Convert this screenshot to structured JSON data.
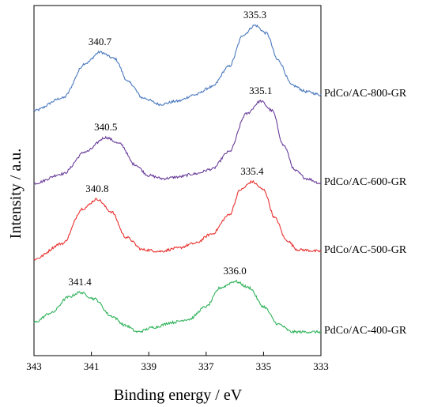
{
  "chart_data": {
    "type": "line",
    "xlabel": "Binding energy / eV",
    "ylabel": "Intensity / a.u.",
    "x_reversed": true,
    "xlim": [
      343,
      333
    ],
    "x_ticks": [
      "343",
      "341",
      "339",
      "337",
      "335",
      "333"
    ],
    "y_ticks_shown": false,
    "legend": "series labels at right end of each curve",
    "series": [
      {
        "name": "PdCo/AC-800-GR",
        "color": "#4a78be",
        "offset": 0.75,
        "peak_left": {
          "x": 340.7,
          "label": "340.7",
          "height": 0.185
        },
        "peak_right": {
          "x": 335.3,
          "label": "335.3",
          "height": 0.27
        },
        "points": [
          [
            343,
            0.0
          ],
          [
            342,
            0.04
          ],
          [
            341.2,
            0.15
          ],
          [
            340.7,
            0.185
          ],
          [
            340.2,
            0.165
          ],
          [
            339.7,
            0.09
          ],
          [
            339.2,
            0.04
          ],
          [
            338.6,
            0.02
          ],
          [
            338,
            0.03
          ],
          [
            337.4,
            0.05
          ],
          [
            336.8,
            0.075
          ],
          [
            336.2,
            0.14
          ],
          [
            335.7,
            0.24
          ],
          [
            335.3,
            0.27
          ],
          [
            334.9,
            0.245
          ],
          [
            334.5,
            0.16
          ],
          [
            334.0,
            0.08
          ],
          [
            333.5,
            0.06
          ],
          [
            333,
            0.05
          ]
        ]
      },
      {
        "name": "PdCo/AC-600-GR",
        "color": "#6a3d9a",
        "offset": 0.52,
        "peak_left": {
          "x": 340.5,
          "label": "340.5",
          "height": 0.145
        },
        "peak_right": {
          "x": 335.1,
          "label": "335.1",
          "height": 0.26
        },
        "points": [
          [
            343,
            0.0
          ],
          [
            342,
            0.03
          ],
          [
            341.2,
            0.1
          ],
          [
            340.5,
            0.145
          ],
          [
            340.0,
            0.125
          ],
          [
            339.5,
            0.06
          ],
          [
            339.0,
            0.025
          ],
          [
            338.5,
            0.015
          ],
          [
            338,
            0.02
          ],
          [
            337.4,
            0.03
          ],
          [
            336.8,
            0.045
          ],
          [
            336.2,
            0.1
          ],
          [
            335.6,
            0.22
          ],
          [
            335.1,
            0.26
          ],
          [
            334.7,
            0.23
          ],
          [
            334.3,
            0.12
          ],
          [
            333.9,
            0.04
          ],
          [
            333.5,
            0.015
          ],
          [
            333,
            0.0
          ]
        ]
      },
      {
        "name": "PdCo/AC-500-GR",
        "color": "#e8302e",
        "offset": 0.28,
        "peak_left": {
          "x": 340.8,
          "label": "340.8",
          "height": 0.19
        },
        "peak_right": {
          "x": 335.4,
          "label": "335.4",
          "height": 0.245
        },
        "points": [
          [
            343,
            0.0
          ],
          [
            342,
            0.05
          ],
          [
            341.3,
            0.16
          ],
          [
            340.8,
            0.19
          ],
          [
            340.3,
            0.15
          ],
          [
            339.8,
            0.07
          ],
          [
            339.2,
            0.03
          ],
          [
            338.6,
            0.025
          ],
          [
            338,
            0.035
          ],
          [
            337.4,
            0.05
          ],
          [
            336.8,
            0.08
          ],
          [
            336.2,
            0.14
          ],
          [
            335.8,
            0.22
          ],
          [
            335.4,
            0.245
          ],
          [
            335.0,
            0.22
          ],
          [
            334.6,
            0.13
          ],
          [
            334.2,
            0.06
          ],
          [
            333.8,
            0.03
          ],
          [
            333,
            0.025
          ]
        ]
      },
      {
        "name": "PdCo/AC-400-GR",
        "color": "#2fb25a",
        "offset": 0.08,
        "peak_left": {
          "x": 341.4,
          "label": "341.4",
          "height": 0.095
        },
        "peak_right": {
          "x": 336.0,
          "label": "336.0",
          "height": 0.13
        },
        "points": [
          [
            343,
            0.0
          ],
          [
            342.4,
            0.03
          ],
          [
            341.8,
            0.08
          ],
          [
            341.4,
            0.095
          ],
          [
            340.9,
            0.075
          ],
          [
            340.3,
            0.02
          ],
          [
            339.8,
            -0.01
          ],
          [
            339.4,
            -0.03
          ],
          [
            338.8,
            -0.015
          ],
          [
            338.2,
            0.0
          ],
          [
            337.6,
            0.01
          ],
          [
            337.0,
            0.05
          ],
          [
            336.5,
            0.11
          ],
          [
            336.0,
            0.13
          ],
          [
            335.5,
            0.11
          ],
          [
            335.0,
            0.05
          ],
          [
            334.5,
            -0.005
          ],
          [
            334.0,
            -0.03
          ],
          [
            333.5,
            -0.03
          ],
          [
            333,
            -0.03
          ]
        ]
      }
    ]
  }
}
